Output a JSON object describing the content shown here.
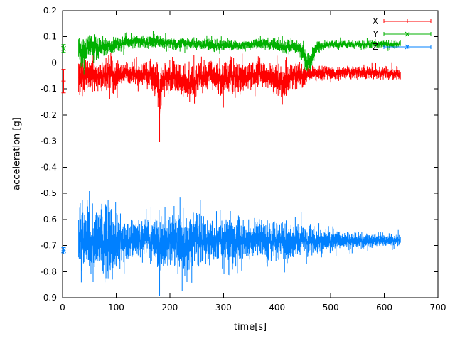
{
  "figure": {
    "background": "#ffffff",
    "border_color": "#000000"
  },
  "chart_data": {
    "type": "line",
    "style": "yerrorbars",
    "title": "",
    "xlabel": "time[s]",
    "ylabel": "acceleration [g]",
    "xlim": [
      0,
      700
    ],
    "ylim": [
      -0.9,
      0.2
    ],
    "grid": false,
    "legend_position": "top-right",
    "xticks": {
      "values": [
        0,
        100,
        200,
        300,
        400,
        500,
        600,
        700
      ],
      "labels": [
        "0",
        "100",
        "200",
        "300",
        "400",
        "500",
        "600",
        "700"
      ]
    },
    "yticks": {
      "values": [
        -0.9,
        -0.8,
        -0.7,
        -0.6,
        -0.5,
        -0.4,
        -0.3,
        -0.2,
        -0.1,
        0,
        0.1,
        0.2
      ],
      "labels": [
        "-0.9",
        "-0.8",
        "-0.7",
        "-0.6",
        "-0.5",
        "-0.4",
        "-0.3",
        "-0.2",
        "-0.1",
        "0",
        "0.1",
        "0.2"
      ]
    },
    "series": [
      {
        "name": "X",
        "color": "#ff0000",
        "marker": "plus",
        "mean_level": -0.05,
        "initial_point": {
          "t": 2,
          "y": -0.07,
          "err": 0.045
        },
        "envelope": [
          [
            30,
            -0.06,
            0.075
          ],
          [
            38,
            -0.05,
            0.065
          ],
          [
            48,
            -0.04,
            0.05
          ],
          [
            58,
            -0.045,
            0.045
          ],
          [
            68,
            -0.05,
            0.05
          ],
          [
            78,
            -0.045,
            0.05
          ],
          [
            88,
            -0.04,
            0.055
          ],
          [
            95,
            -0.05,
            0.065
          ],
          [
            105,
            -0.04,
            0.035
          ],
          [
            120,
            -0.04,
            0.03
          ],
          [
            135,
            -0.04,
            0.035
          ],
          [
            150,
            -0.045,
            0.04
          ],
          [
            165,
            -0.05,
            0.05
          ],
          [
            175,
            -0.06,
            0.06
          ],
          [
            179,
            -0.07,
            0.06
          ],
          [
            181,
            -0.15,
            0.13
          ],
          [
            183,
            -0.07,
            0.06
          ],
          [
            195,
            -0.05,
            0.05
          ],
          [
            210,
            -0.06,
            0.05
          ],
          [
            222,
            -0.075,
            0.055
          ],
          [
            235,
            -0.08,
            0.055
          ],
          [
            248,
            -0.065,
            0.05
          ],
          [
            262,
            -0.05,
            0.045
          ],
          [
            275,
            -0.04,
            0.04
          ],
          [
            288,
            -0.05,
            0.05
          ],
          [
            300,
            -0.065,
            0.06
          ],
          [
            312,
            -0.05,
            0.055
          ],
          [
            325,
            -0.06,
            0.055
          ],
          [
            338,
            -0.055,
            0.05
          ],
          [
            350,
            -0.045,
            0.045
          ],
          [
            362,
            -0.04,
            0.04
          ],
          [
            375,
            -0.05,
            0.045
          ],
          [
            388,
            -0.045,
            0.04
          ],
          [
            400,
            -0.06,
            0.05
          ],
          [
            410,
            -0.08,
            0.06
          ],
          [
            422,
            -0.06,
            0.05
          ],
          [
            435,
            -0.045,
            0.04
          ],
          [
            448,
            -0.05,
            0.04
          ],
          [
            458,
            -0.04,
            0.03
          ],
          [
            470,
            -0.04,
            0.025
          ],
          [
            490,
            -0.038,
            0.022
          ],
          [
            520,
            -0.04,
            0.02
          ],
          [
            560,
            -0.035,
            0.02
          ],
          [
            600,
            -0.04,
            0.02
          ],
          [
            630,
            -0.04,
            0.02
          ]
        ]
      },
      {
        "name": "Y",
        "color": "#00b000",
        "marker": "times",
        "mean_level": 0.07,
        "initial_point": {
          "t": 2,
          "y": 0.055,
          "err": 0.015
        },
        "envelope": [
          [
            30,
            0.045,
            0.055
          ],
          [
            40,
            0.05,
            0.05
          ],
          [
            52,
            0.055,
            0.042
          ],
          [
            64,
            0.06,
            0.036
          ],
          [
            76,
            0.062,
            0.032
          ],
          [
            90,
            0.065,
            0.028
          ],
          [
            104,
            0.07,
            0.024
          ],
          [
            118,
            0.078,
            0.02
          ],
          [
            132,
            0.086,
            0.02
          ],
          [
            146,
            0.08,
            0.02
          ],
          [
            158,
            0.076,
            0.02
          ],
          [
            172,
            0.088,
            0.024
          ],
          [
            186,
            0.082,
            0.02
          ],
          [
            200,
            0.076,
            0.02
          ],
          [
            215,
            0.072,
            0.018
          ],
          [
            230,
            0.076,
            0.018
          ],
          [
            246,
            0.072,
            0.016
          ],
          [
            262,
            0.07,
            0.018
          ],
          [
            278,
            0.068,
            0.02
          ],
          [
            294,
            0.066,
            0.02
          ],
          [
            310,
            0.07,
            0.018
          ],
          [
            326,
            0.066,
            0.016
          ],
          [
            342,
            0.068,
            0.015
          ],
          [
            358,
            0.07,
            0.015
          ],
          [
            374,
            0.074,
            0.018
          ],
          [
            390,
            0.07,
            0.018
          ],
          [
            404,
            0.065,
            0.02
          ],
          [
            418,
            0.06,
            0.024
          ],
          [
            432,
            0.066,
            0.02
          ],
          [
            442,
            0.055,
            0.026
          ],
          [
            450,
            0.03,
            0.032
          ],
          [
            457,
            0.002,
            0.036
          ],
          [
            462,
            -0.008,
            0.03
          ],
          [
            467,
            0.028,
            0.03
          ],
          [
            473,
            0.058,
            0.022
          ],
          [
            485,
            0.068,
            0.016
          ],
          [
            500,
            0.07,
            0.014
          ],
          [
            530,
            0.07,
            0.012
          ],
          [
            570,
            0.071,
            0.012
          ],
          [
            610,
            0.071,
            0.012
          ],
          [
            630,
            0.07,
            0.012
          ]
        ]
      },
      {
        "name": "Z",
        "color": "#0080ff",
        "marker": "asterisk",
        "mean_level": -0.68,
        "initial_point": {
          "t": 2,
          "y": -0.72,
          "err": 0.012
        },
        "envelope": [
          [
            30,
            -0.68,
            0.1
          ],
          [
            38,
            -0.68,
            0.12
          ],
          [
            48,
            -0.685,
            0.115
          ],
          [
            58,
            -0.68,
            0.11
          ],
          [
            68,
            -0.68,
            0.1
          ],
          [
            80,
            -0.682,
            0.12
          ],
          [
            91,
            -0.69,
            0.11
          ],
          [
            93,
            -0.73,
            0.13
          ],
          [
            95,
            -0.69,
            0.11
          ],
          [
            105,
            -0.68,
            0.09
          ],
          [
            118,
            -0.68,
            0.075
          ],
          [
            132,
            -0.68,
            0.065
          ],
          [
            146,
            -0.68,
            0.06
          ],
          [
            160,
            -0.68,
            0.065
          ],
          [
            172,
            -0.685,
            0.07
          ],
          [
            179,
            -0.69,
            0.09
          ],
          [
            181,
            -0.72,
            0.13
          ],
          [
            183,
            -0.69,
            0.09
          ],
          [
            195,
            -0.68,
            0.08
          ],
          [
            208,
            -0.685,
            0.09
          ],
          [
            222,
            -0.685,
            0.1
          ],
          [
            232,
            -0.69,
            0.1
          ],
          [
            244,
            -0.685,
            0.085
          ],
          [
            258,
            -0.68,
            0.075
          ],
          [
            272,
            -0.68,
            0.065
          ],
          [
            286,
            -0.68,
            0.06
          ],
          [
            300,
            -0.682,
            0.07
          ],
          [
            314,
            -0.69,
            0.078
          ],
          [
            328,
            -0.682,
            0.062
          ],
          [
            344,
            -0.68,
            0.058
          ],
          [
            360,
            -0.68,
            0.06
          ],
          [
            376,
            -0.682,
            0.068
          ],
          [
            390,
            -0.68,
            0.058
          ],
          [
            404,
            -0.68,
            0.058
          ],
          [
            416,
            -0.688,
            0.068
          ],
          [
            430,
            -0.682,
            0.052
          ],
          [
            446,
            -0.68,
            0.05
          ],
          [
            462,
            -0.68,
            0.044
          ],
          [
            478,
            -0.68,
            0.04
          ],
          [
            494,
            -0.68,
            0.036
          ],
          [
            512,
            -0.68,
            0.032
          ],
          [
            532,
            -0.68,
            0.028
          ],
          [
            554,
            -0.68,
            0.025
          ],
          [
            578,
            -0.68,
            0.022
          ],
          [
            604,
            -0.679,
            0.02
          ],
          [
            630,
            -0.679,
            0.018
          ]
        ]
      }
    ]
  }
}
